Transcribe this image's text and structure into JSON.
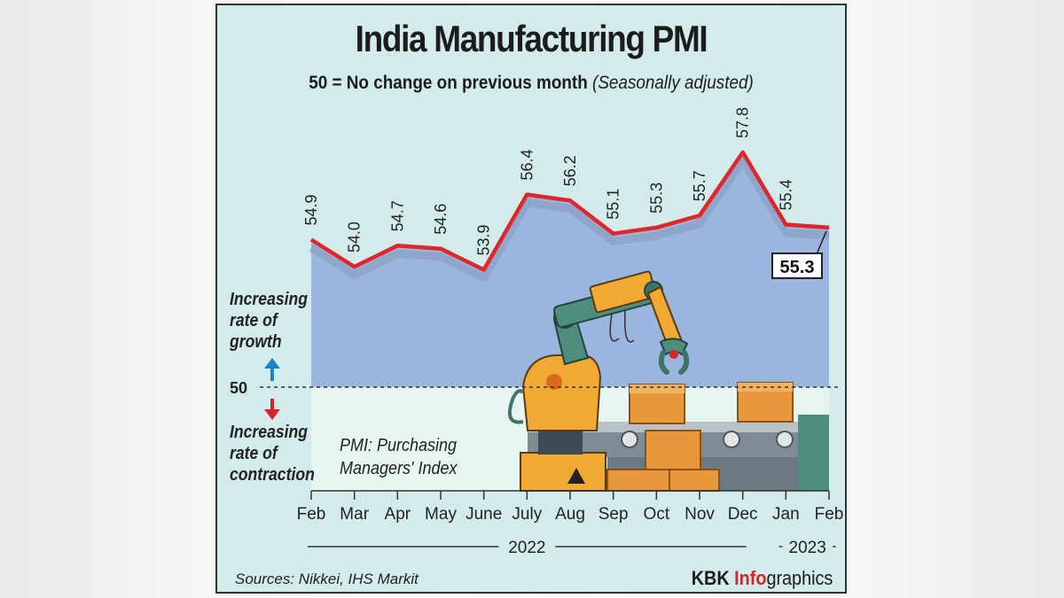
{
  "chart_data": {
    "type": "area",
    "title": "India Manufacturing PMI",
    "subtitle": "50 = No change on previous month",
    "subtitle_note": "(Seasonally adjusted)",
    "categories": [
      "Feb",
      "Mar",
      "Apr",
      "May",
      "June",
      "July",
      "Aug",
      "Sep",
      "Oct",
      "Nov",
      "Dec",
      "Jan",
      "Feb"
    ],
    "values": [
      54.9,
      54.0,
      54.7,
      54.6,
      53.9,
      56.4,
      56.2,
      55.1,
      55.3,
      55.7,
      57.8,
      55.4,
      55.3
    ],
    "value_labels": [
      "54.9",
      "54.0",
      "54.7",
      "54.6",
      "53.9",
      "56.4",
      "56.2",
      "55.1",
      "55.3",
      "55.7",
      "57.8",
      "55.4",
      "55.3"
    ],
    "highlight_label": "55.3",
    "baseline": 50,
    "baseline_label": "50",
    "year_labels": [
      "2022",
      "2023"
    ],
    "year_spans": [
      [
        0,
        10
      ],
      [
        11,
        12
      ]
    ],
    "colors": {
      "line": "#e0262a",
      "area": "#9ab6df",
      "background": "#d3ebea",
      "lower": "#e6f4f2",
      "up_arrow": "#1c84c6",
      "down_arrow": "#d9232b"
    }
  },
  "labels": {
    "growth": [
      "Increasing",
      "rate of",
      "growth"
    ],
    "contraction": [
      "Increasing",
      "rate of",
      "contraction"
    ],
    "pmi_note": [
      "PMI: Purchasing",
      "Managers' Index"
    ],
    "sources": "Sources: Nikkei, IHS Markit",
    "credit_kbk": "KBK",
    "credit_info": "Info",
    "credit_graphics": "graphics"
  }
}
